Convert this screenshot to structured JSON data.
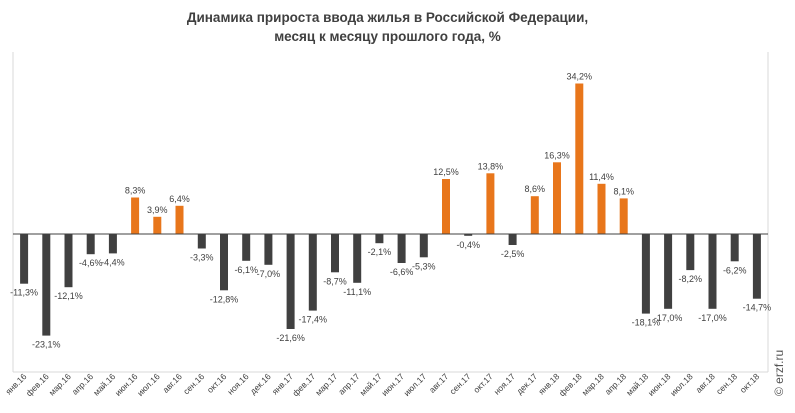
{
  "title_line1": "Динамика прироста ввода жилья в Российской Федерации,",
  "title_line2": "месяц к месяцу прошлого года, %",
  "watermark": "© erzf.ru",
  "colors": {
    "negative": "#404040",
    "positive": "#e8761b",
    "grid": "#d9d9d9",
    "text": "#404040"
  },
  "chart_data": {
    "type": "bar",
    "title": "Динамика прироста ввода жилья в Российской Федерации, месяц к месяцу прошлого года, %",
    "categories": [
      "янв.16",
      "фев.16",
      "мар.16",
      "апр.16",
      "май.16",
      "июн.16",
      "июл.16",
      "авг.16",
      "сен.16",
      "окт.16",
      "ноя.16",
      "дек.16",
      "янв.17",
      "фев.17",
      "мар.17",
      "апр.17",
      "май.17",
      "июн.17",
      "июл.17",
      "авг.17",
      "сен.17",
      "окт.17",
      "ноя.17",
      "дек.17",
      "янв.18",
      "фев.18",
      "мар.18",
      "апр.18",
      "май.18",
      "июн.18",
      "июл.18",
      "авг.18",
      "сен.18",
      "окт.18"
    ],
    "values": [
      -11.3,
      -23.1,
      -12.1,
      -4.6,
      -4.4,
      8.3,
      3.9,
      6.4,
      -3.3,
      -12.8,
      -6.1,
      -7.0,
      -21.6,
      -17.4,
      -8.7,
      -11.1,
      -2.1,
      -6.6,
      -5.3,
      12.5,
      -0.4,
      13.8,
      -2.5,
      8.6,
      16.3,
      34.2,
      11.4,
      8.1,
      -18.1,
      -17.0,
      -8.2,
      -17.0,
      -6.2,
      -14.7
    ],
    "labels": [
      "-11,3%",
      "-23,1%",
      "-12,1%",
      "-4,6%",
      "-4,4%",
      "8,3%",
      "3,9%",
      "6,4%",
      "-3,3%",
      "-12,8%",
      "-6,1%",
      "-7,0%",
      "-21,6%",
      "-17,4%",
      "-8,7%",
      "-11,1%",
      "-2,1%",
      "-6,6%",
      "-5,3%",
      "12,5%",
      "-0,4%",
      "13,8%",
      "-2,5%",
      "8,6%",
      "16,3%",
      "34,2%",
      "11,4%",
      "8,1%",
      "-18,1%",
      "-17,0%",
      "-8,2%",
      "-17,0%",
      "-6,2%",
      "-14,7%"
    ],
    "ylim": [
      -30,
      40
    ],
    "grid": false,
    "legend": "none"
  }
}
